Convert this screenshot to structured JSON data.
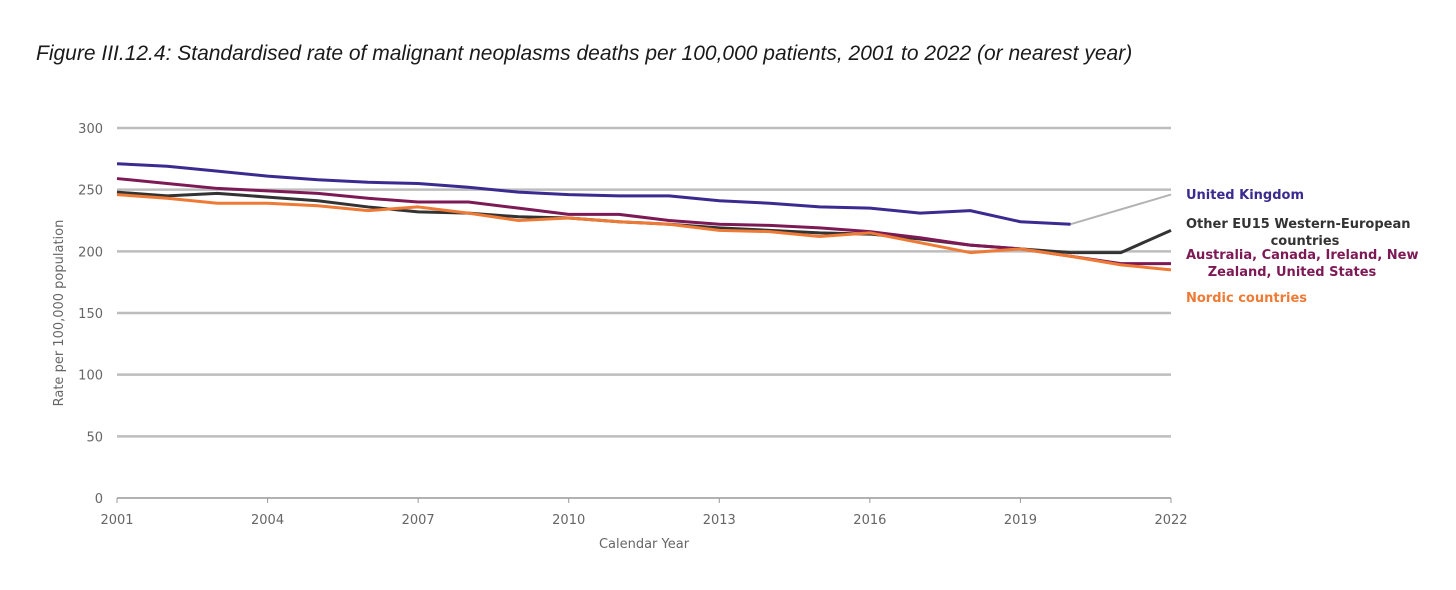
{
  "title": "Figure III.12.4: Standardised rate of malignant neoplasms deaths per 100,000 patients, 2001 to 2022 (or nearest year)",
  "chart_data": {
    "type": "line",
    "xlabel": "Calendar Year",
    "ylabel": "Rate per 100,000 population",
    "xlim": [
      2001,
      2022
    ],
    "ylim": [
      0,
      300
    ],
    "xticks": [
      "2001",
      "2004",
      "2007",
      "2010",
      "2013",
      "2016",
      "2019",
      "2022"
    ],
    "yticks": [
      "0",
      "50",
      "100",
      "150",
      "200",
      "250",
      "300"
    ],
    "grid": true,
    "legend_placement": "right",
    "x": [
      2001,
      2002,
      2003,
      2004,
      2005,
      2006,
      2007,
      2008,
      2009,
      2010,
      2011,
      2012,
      2013,
      2014,
      2015,
      2016,
      2017,
      2018,
      2019,
      2020,
      2021,
      2022
    ],
    "series": [
      {
        "name": "United Kingdom",
        "legend_lines": [
          "United Kingdom"
        ],
        "color": "#3b2a8f",
        "values": [
          271,
          269,
          265,
          261,
          258,
          256,
          255,
          252,
          248,
          246,
          245,
          245,
          241,
          239,
          236,
          235,
          231,
          233,
          224,
          222,
          null,
          null
        ],
        "projection": {
          "x": [
            2020,
            2022
          ],
          "values": [
            222,
            246
          ],
          "color": "#b3b3b3"
        }
      },
      {
        "name": "Other EU15 Western-European countries",
        "legend_lines": [
          "Other EU15 Western-European",
          "countries"
        ],
        "color": "#333333",
        "values": [
          248,
          245,
          247,
          244,
          241,
          236,
          232,
          231,
          228,
          227,
          224,
          222,
          219,
          217,
          215,
          214,
          210,
          205,
          202,
          199,
          199,
          217
        ]
      },
      {
        "name": "Australia, Canada, Ireland, New Zealand, United States",
        "legend_lines": [
          "Australia, Canada, Ireland, New",
          "Zealand, United States"
        ],
        "color": "#7d1a55",
        "values": [
          259,
          255,
          251,
          249,
          247,
          243,
          240,
          240,
          235,
          230,
          230,
          225,
          222,
          221,
          219,
          216,
          211,
          205,
          202,
          196,
          190,
          190
        ]
      },
      {
        "name": "Nordic countries",
        "legend_lines": [
          "Nordic countries"
        ],
        "color": "#ee7a35",
        "values": [
          246,
          243,
          239,
          239,
          237,
          233,
          236,
          231,
          225,
          227,
          224,
          222,
          217,
          216,
          212,
          215,
          207,
          199,
          202,
          196,
          189,
          185
        ]
      }
    ]
  }
}
